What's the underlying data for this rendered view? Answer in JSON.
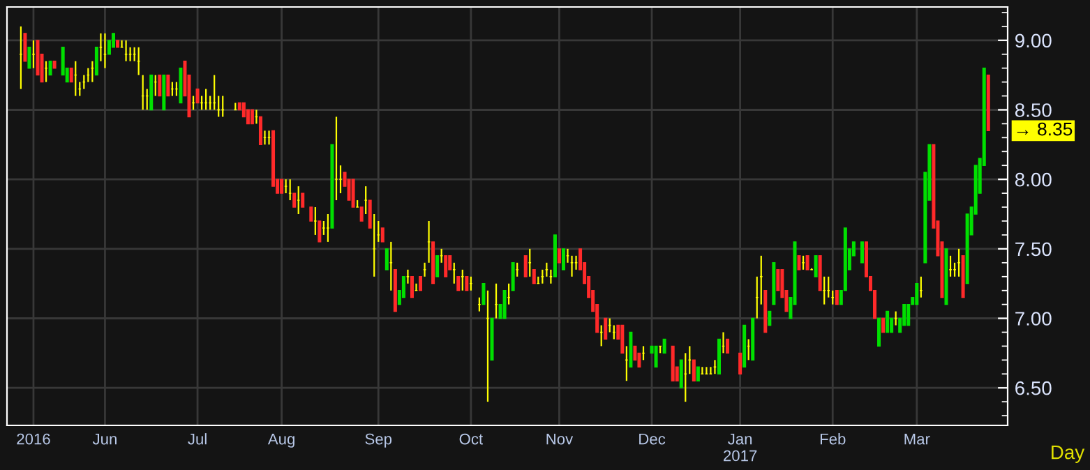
{
  "chart_data": {
    "type": "candlestick",
    "xlabel": "Day",
    "categories": [
      null,
      null,
      null,
      "2016",
      null,
      null,
      null,
      null,
      null,
      null,
      null,
      null,
      null,
      null,
      null,
      null,
      null,
      null,
      null,
      null,
      "Jun",
      null,
      null,
      null,
      null,
      null,
      null,
      null,
      null,
      null,
      null,
      null,
      null,
      null,
      null,
      null,
      null,
      null,
      null,
      null,
      null,
      null,
      "Jul",
      null,
      null,
      null,
      null,
      null,
      null,
      null,
      null,
      null,
      null,
      null,
      null,
      null,
      null,
      null,
      null,
      null,
      null,
      null,
      "Aug",
      null,
      null,
      null,
      null,
      null,
      null,
      null,
      null,
      null,
      null,
      null,
      null,
      null,
      null,
      null,
      null,
      null,
      null,
      null,
      null,
      null,
      null,
      "Sep",
      null,
      null,
      null,
      null,
      null,
      null,
      null,
      null,
      null,
      null,
      null,
      null,
      null,
      null,
      null,
      null,
      null,
      null,
      null,
      null,
      null,
      "Oct",
      null,
      null,
      null,
      null,
      null,
      null,
      null,
      null,
      null,
      null,
      null,
      null,
      null,
      null,
      null,
      null,
      null,
      null,
      null,
      null,
      "Nov",
      null,
      null,
      null,
      null,
      null,
      null,
      null,
      null,
      null,
      null,
      null,
      null,
      null,
      null,
      null,
      null,
      null,
      null,
      null,
      null,
      null,
      "Dec",
      null,
      null,
      null,
      null,
      null,
      null,
      null,
      null,
      null,
      null,
      null,
      null,
      null,
      null,
      null,
      null,
      null,
      null,
      null,
      null,
      "Jan\n2017",
      null,
      null,
      null,
      null,
      null,
      null,
      null,
      null,
      null,
      null,
      null,
      null,
      null,
      null,
      null,
      null,
      null,
      null,
      null,
      null,
      null,
      "Feb",
      null,
      null,
      null,
      null,
      null,
      null,
      null,
      null,
      null,
      null,
      null,
      null,
      null,
      null,
      null,
      null,
      null,
      null,
      null,
      "Mar",
      null,
      null,
      null,
      null,
      null,
      null,
      null,
      null,
      null,
      null,
      null,
      null,
      null,
      null,
      null,
      null,
      null
    ],
    "ohlc": [
      [
        8.9,
        9.1,
        8.65,
        8.9
      ],
      [
        9.05,
        9.05,
        8.85,
        8.85
      ],
      [
        8.8,
        8.95,
        8.8,
        8.95
      ],
      [
        8.9,
        9.0,
        8.8,
        8.9
      ],
      [
        9.0,
        9.0,
        8.75,
        8.75
      ],
      [
        8.9,
        8.9,
        8.7,
        8.7
      ],
      [
        8.8,
        8.85,
        8.7,
        8.8
      ],
      [
        8.75,
        8.85,
        8.75,
        8.85
      ],
      [
        8.85,
        8.85,
        8.8,
        8.8
      ],
      null,
      [
        8.75,
        8.95,
        8.75,
        8.95
      ],
      [
        8.7,
        8.8,
        8.7,
        8.8
      ],
      [
        8.8,
        8.8,
        8.7,
        8.7
      ],
      [
        8.75,
        8.85,
        8.6,
        8.75
      ],
      [
        8.65,
        8.7,
        8.6,
        8.65
      ],
      [
        8.7,
        8.75,
        8.65,
        8.7
      ],
      [
        8.75,
        8.8,
        8.7,
        8.75
      ],
      [
        8.8,
        8.85,
        8.7,
        8.8
      ],
      [
        8.75,
        8.95,
        8.75,
        8.95
      ],
      [
        8.95,
        9.05,
        8.85,
        8.95
      ],
      [
        8.9,
        9.05,
        8.8,
        8.9
      ],
      [
        8.9,
        9.0,
        8.9,
        9.0
      ],
      [
        8.95,
        9.05,
        8.95,
        9.05
      ],
      [
        9.0,
        9.0,
        8.95,
        8.95
      ],
      [
        8.95,
        9.0,
        8.95,
        8.95
      ],
      [
        8.9,
        9.0,
        8.85,
        8.9
      ],
      [
        8.9,
        8.95,
        8.85,
        8.9
      ],
      [
        8.9,
        8.95,
        8.85,
        8.9
      ],
      [
        8.85,
        8.95,
        8.75,
        8.85
      ],
      [
        8.6,
        8.75,
        8.5,
        8.6
      ],
      [
        8.6,
        8.65,
        8.5,
        8.6
      ],
      [
        8.5,
        8.75,
        8.5,
        8.75
      ],
      [
        8.7,
        8.75,
        8.6,
        8.7
      ],
      [
        8.75,
        8.75,
        8.6,
        8.6
      ],
      [
        8.5,
        8.75,
        8.5,
        8.75
      ],
      [
        8.75,
        8.75,
        8.6,
        8.6
      ],
      [
        8.65,
        8.7,
        8.6,
        8.65
      ],
      [
        8.65,
        8.7,
        8.6,
        8.65
      ],
      [
        8.55,
        8.8,
        8.55,
        8.8
      ],
      [
        8.85,
        8.85,
        8.6,
        8.6
      ],
      [
        8.75,
        8.75,
        8.45,
        8.45
      ],
      [
        8.55,
        8.6,
        8.5,
        8.55
      ],
      [
        8.65,
        8.65,
        8.55,
        8.55
      ],
      [
        8.55,
        8.6,
        8.5,
        8.55
      ],
      [
        8.55,
        8.65,
        8.5,
        8.55
      ],
      [
        8.55,
        8.6,
        8.5,
        8.55
      ],
      [
        8.55,
        8.75,
        8.5,
        8.55
      ],
      [
        8.5,
        8.6,
        8.45,
        8.5
      ],
      [
        8.5,
        8.6,
        8.45,
        8.5
      ],
      null,
      null,
      [
        8.5,
        8.55,
        8.5,
        8.5
      ],
      [
        8.55,
        8.55,
        8.5,
        8.5
      ],
      [
        8.55,
        8.55,
        8.45,
        8.45
      ],
      [
        8.5,
        8.5,
        8.4,
        8.4
      ],
      [
        8.5,
        8.5,
        8.4,
        8.4
      ],
      [
        8.45,
        8.5,
        8.4,
        8.45
      ],
      [
        8.45,
        8.45,
        8.25,
        8.25
      ],
      [
        8.3,
        8.35,
        8.25,
        8.3
      ],
      [
        8.3,
        8.35,
        8.25,
        8.3
      ],
      [
        8.35,
        8.35,
        7.95,
        7.95
      ],
      [
        8.0,
        8.0,
        7.9,
        7.9
      ],
      [
        8.0,
        8.0,
        7.9,
        7.9
      ],
      [
        7.95,
        8.0,
        7.9,
        7.95
      ],
      [
        7.9,
        8.0,
        7.85,
        7.9
      ],
      [
        7.9,
        7.9,
        7.8,
        7.8
      ],
      [
        7.85,
        7.95,
        7.75,
        7.85
      ],
      [
        7.9,
        7.9,
        7.8,
        7.8
      ],
      null,
      [
        7.8,
        7.8,
        7.7,
        7.7
      ],
      [
        7.7,
        7.8,
        7.6,
        7.7
      ],
      [
        7.7,
        7.7,
        7.55,
        7.55
      ],
      [
        7.65,
        7.7,
        7.6,
        7.65
      ],
      [
        7.65,
        7.75,
        7.55,
        7.65
      ],
      [
        7.65,
        8.25,
        7.65,
        8.25
      ],
      [
        8.0,
        8.45,
        7.85,
        8.0
      ],
      [
        8.0,
        8.1,
        7.9,
        8.0
      ],
      [
        8.05,
        8.05,
        7.95,
        7.95
      ],
      [
        8.0,
        8.0,
        7.85,
        7.85
      ],
      [
        8.0,
        8.0,
        7.8,
        7.8
      ],
      [
        7.8,
        7.85,
        7.8,
        7.8
      ],
      [
        7.8,
        7.8,
        7.7,
        7.7
      ],
      [
        7.85,
        7.95,
        7.75,
        7.85
      ],
      [
        7.85,
        7.85,
        7.65,
        7.65
      ],
      [
        7.5,
        7.75,
        7.3,
        7.5
      ],
      [
        7.6,
        7.7,
        7.55,
        7.6
      ],
      [
        7.65,
        7.65,
        7.55,
        7.55
      ],
      [
        7.35,
        7.5,
        7.35,
        7.5
      ],
      [
        7.4,
        7.55,
        7.2,
        7.4
      ],
      [
        7.35,
        7.35,
        7.05,
        7.05
      ],
      [
        7.1,
        7.2,
        7.1,
        7.2
      ],
      [
        7.15,
        7.3,
        7.15,
        7.3
      ],
      [
        7.3,
        7.35,
        7.25,
        7.3
      ],
      [
        7.3,
        7.3,
        7.15,
        7.15
      ],
      [
        7.2,
        7.25,
        7.2,
        7.2
      ],
      [
        7.3,
        7.3,
        7.2,
        7.2
      ],
      [
        7.35,
        7.4,
        7.3,
        7.35
      ],
      [
        7.55,
        7.7,
        7.4,
        7.55
      ],
      [
        7.55,
        7.55,
        7.25,
        7.25
      ],
      [
        7.3,
        7.45,
        7.3,
        7.45
      ],
      [
        7.45,
        7.5,
        7.4,
        7.45
      ],
      [
        7.45,
        7.45,
        7.3,
        7.3
      ],
      [
        7.45,
        7.45,
        7.35,
        7.35
      ],
      [
        7.35,
        7.4,
        7.25,
        7.35
      ],
      [
        7.3,
        7.3,
        7.2,
        7.2
      ],
      [
        7.3,
        7.35,
        7.2,
        7.3
      ],
      [
        7.3,
        7.3,
        7.2,
        7.2
      ],
      [
        7.25,
        7.3,
        7.2,
        7.25
      ],
      null,
      [
        7.1,
        7.15,
        7.05,
        7.1
      ],
      [
        7.1,
        7.25,
        7.1,
        7.25
      ],
      [
        7.0,
        7.2,
        6.4,
        7.0
      ],
      [
        6.7,
        7.0,
        6.7,
        7.0
      ],
      [
        7.1,
        7.25,
        7.0,
        7.1
      ],
      [
        7.0,
        7.1,
        7.0,
        7.1
      ],
      [
        7.0,
        7.2,
        7.0,
        7.2
      ],
      [
        7.15,
        7.25,
        7.1,
        7.15
      ],
      [
        7.2,
        7.4,
        7.2,
        7.4
      ],
      [
        7.35,
        7.4,
        7.3,
        7.35
      ],
      null,
      [
        7.45,
        7.45,
        7.3,
        7.3
      ],
      [
        7.4,
        7.5,
        7.3,
        7.4
      ],
      [
        7.35,
        7.35,
        7.25,
        7.25
      ],
      [
        7.25,
        7.3,
        7.25,
        7.25
      ],
      [
        7.3,
        7.35,
        7.25,
        7.3
      ],
      [
        7.35,
        7.4,
        7.3,
        7.35
      ],
      [
        7.3,
        7.35,
        7.25,
        7.3
      ],
      [
        7.3,
        7.6,
        7.3,
        7.6
      ],
      [
        7.5,
        7.5,
        7.4,
        7.4
      ],
      [
        7.35,
        7.5,
        7.35,
        7.5
      ],
      [
        7.45,
        7.5,
        7.4,
        7.45
      ],
      [
        7.4,
        7.45,
        7.3,
        7.4
      ],
      [
        7.4,
        7.45,
        7.35,
        7.4
      ],
      [
        7.5,
        7.5,
        7.35,
        7.35
      ],
      [
        7.4,
        7.4,
        7.25,
        7.25
      ],
      [
        7.3,
        7.3,
        7.15,
        7.15
      ],
      [
        7.2,
        7.2,
        7.05,
        7.05
      ],
      [
        7.1,
        7.1,
        6.9,
        6.9
      ],
      [
        6.9,
        6.95,
        6.8,
        6.9
      ],
      [
        7.0,
        7.0,
        6.85,
        6.85
      ],
      [
        6.95,
        7.0,
        6.9,
        6.95
      ],
      [
        6.9,
        6.95,
        6.85,
        6.9
      ],
      [
        6.95,
        6.95,
        6.85,
        6.85
      ],
      [
        6.95,
        6.95,
        6.75,
        6.75
      ],
      [
        6.7,
        6.8,
        6.55,
        6.7
      ],
      [
        6.65,
        6.9,
        6.65,
        6.9
      ],
      [
        6.8,
        6.8,
        6.7,
        6.7
      ],
      [
        6.75,
        6.75,
        6.65,
        6.65
      ],
      [
        6.75,
        6.8,
        6.7,
        6.75
      ],
      null,
      [
        6.75,
        6.8,
        6.75,
        6.8
      ],
      [
        6.65,
        6.8,
        6.65,
        6.8
      ],
      [
        6.8,
        6.8,
        6.75,
        6.8
      ],
      [
        6.75,
        6.85,
        6.75,
        6.85
      ],
      null,
      [
        6.8,
        6.8,
        6.55,
        6.55
      ],
      [
        6.65,
        6.65,
        6.55,
        6.55
      ],
      [
        6.5,
        6.7,
        6.5,
        6.7
      ],
      [
        6.6,
        6.75,
        6.4,
        6.6
      ],
      [
        6.7,
        6.8,
        6.6,
        6.7
      ],
      [
        6.7,
        6.7,
        6.55,
        6.55
      ],
      [
        6.55,
        6.65,
        6.55,
        6.65
      ],
      [
        6.6,
        6.65,
        6.6,
        6.6
      ],
      [
        6.6,
        6.65,
        6.6,
        6.6
      ],
      [
        6.6,
        6.65,
        6.6,
        6.6
      ],
      [
        6.65,
        6.7,
        6.6,
        6.65
      ],
      [
        6.6,
        6.85,
        6.6,
        6.85
      ],
      [
        6.8,
        6.9,
        6.75,
        6.8
      ],
      [
        6.85,
        6.85,
        6.75,
        6.75
      ],
      null,
      null,
      [
        6.75,
        6.75,
        6.6,
        6.6
      ],
      [
        6.65,
        6.95,
        6.65,
        6.95
      ],
      [
        6.8,
        6.85,
        6.7,
        6.8
      ],
      [
        6.7,
        7.0,
        6.7,
        7.0
      ],
      [
        7.15,
        7.3,
        7.0,
        7.15
      ],
      [
        7.3,
        7.45,
        7.1,
        7.3
      ],
      [
        7.2,
        7.2,
        6.9,
        6.9
      ],
      [
        6.95,
        7.05,
        6.95,
        7.05
      ],
      [
        7.1,
        7.4,
        7.1,
        7.4
      ],
      [
        7.35,
        7.35,
        7.2,
        7.2
      ],
      [
        7.35,
        7.35,
        7.15,
        7.15
      ],
      [
        7.2,
        7.2,
        7.05,
        7.05
      ],
      [
        7.0,
        7.15,
        7.0,
        7.15
      ],
      [
        7.1,
        7.55,
        7.1,
        7.55
      ],
      [
        7.45,
        7.45,
        7.35,
        7.35
      ],
      [
        7.4,
        7.45,
        7.35,
        7.4
      ],
      [
        7.45,
        7.45,
        7.35,
        7.35
      ],
      [
        7.35,
        7.36,
        7.35,
        7.35
      ],
      [
        7.3,
        7.45,
        7.3,
        7.45
      ],
      [
        7.45,
        7.45,
        7.2,
        7.2
      ],
      [
        7.2,
        7.3,
        7.1,
        7.2
      ],
      [
        7.2,
        7.3,
        7.15,
        7.2
      ],
      [
        7.15,
        7.2,
        7.1,
        7.15
      ],
      [
        7.2,
        7.2,
        7.1,
        7.1
      ],
      [
        7.1,
        7.2,
        7.1,
        7.2
      ],
      [
        7.2,
        7.65,
        7.2,
        7.65
      ],
      [
        7.35,
        7.5,
        7.35,
        7.5
      ],
      [
        7.45,
        7.55,
        7.45,
        7.55
      ],
      null,
      [
        7.4,
        7.55,
        7.4,
        7.55
      ],
      [
        7.55,
        7.55,
        7.3,
        7.3
      ],
      [
        7.3,
        7.3,
        7.2,
        7.2
      ],
      [
        7.2,
        7.2,
        7.0,
        7.0
      ],
      [
        6.8,
        7.0,
        6.8,
        7.0
      ],
      [
        7.0,
        7.0,
        6.9,
        6.9
      ],
      [
        6.9,
        7.05,
        6.9,
        7.05
      ],
      [
        6.9,
        7.0,
        6.9,
        7.0
      ],
      [
        7.0,
        7.05,
        6.95,
        7.0
      ],
      [
        6.9,
        7.0,
        6.9,
        7.0
      ],
      [
        6.95,
        7.1,
        6.95,
        7.1
      ],
      [
        6.95,
        7.1,
        6.95,
        7.1
      ],
      [
        7.1,
        7.15,
        7.1,
        7.15
      ],
      [
        7.1,
        7.25,
        7.1,
        7.25
      ],
      [
        7.2,
        7.3,
        7.15,
        7.2
      ],
      [
        7.4,
        8.05,
        7.4,
        8.05
      ],
      [
        7.85,
        8.25,
        7.85,
        8.25
      ],
      [
        8.25,
        8.25,
        7.65,
        7.65
      ],
      [
        7.7,
        7.7,
        7.45,
        7.45
      ],
      [
        7.55,
        7.55,
        7.15,
        7.15
      ],
      [
        7.1,
        7.5,
        7.1,
        7.5
      ],
      [
        7.35,
        7.45,
        7.3,
        7.35
      ],
      [
        7.35,
        7.4,
        7.3,
        7.35
      ],
      [
        7.4,
        7.5,
        7.3,
        7.4
      ],
      [
        7.45,
        7.45,
        7.15,
        7.15
      ],
      [
        7.25,
        7.75,
        7.25,
        7.75
      ],
      [
        7.6,
        7.8,
        7.6,
        7.8
      ],
      [
        7.75,
        8.1,
        7.75,
        8.1
      ],
      [
        7.9,
        8.15,
        7.9,
        8.15
      ],
      [
        8.1,
        8.8,
        8.1,
        8.8
      ],
      [
        8.75,
        8.75,
        8.35,
        8.35
      ]
    ],
    "ylim": [
      6.23,
      9.24
    ],
    "yticks": [
      {
        "value": 6.5,
        "label": "6.50"
      },
      {
        "value": 7.0,
        "label": "7.00"
      },
      {
        "value": 7.5,
        "label": "7.50"
      },
      {
        "value": 8.0,
        "label": "8.00"
      },
      {
        "value": 8.5,
        "label": "8.50"
      },
      {
        "value": 9.0,
        "label": "9.00"
      }
    ],
    "annotations": [
      "→ 8.35"
    ],
    "grid": true
  }
}
